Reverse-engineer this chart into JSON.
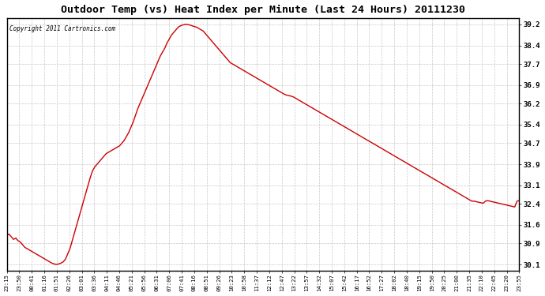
{
  "title": "Outdoor Temp (vs) Heat Index per Minute (Last 24 Hours) 20111230",
  "copyright_text": "Copyright 2011 Cartronics.com",
  "background_color": "#ffffff",
  "plot_bg_color": "#ffffff",
  "line_color": "#cc0000",
  "grid_color": "#bbbbbb",
  "yticks": [
    30.1,
    30.9,
    31.6,
    32.4,
    33.1,
    33.9,
    34.7,
    35.4,
    36.2,
    36.9,
    37.7,
    38.4,
    39.2
  ],
  "ylim": [
    29.85,
    39.45
  ],
  "xtick_labels": [
    "23:15",
    "23:50",
    "00:41",
    "01:16",
    "01:51",
    "02:26",
    "03:01",
    "03:36",
    "04:11",
    "04:46",
    "05:21",
    "05:56",
    "06:31",
    "07:06",
    "07:41",
    "08:16",
    "08:51",
    "09:26",
    "10:23",
    "10:58",
    "11:37",
    "12:12",
    "12:47",
    "13:22",
    "13:57",
    "14:32",
    "15:07",
    "15:42",
    "16:17",
    "16:52",
    "17:27",
    "18:02",
    "18:40",
    "19:15",
    "19:50",
    "20:25",
    "21:00",
    "21:35",
    "22:10",
    "22:45",
    "23:20",
    "23:55"
  ],
  "ydata": [
    31.2,
    31.25,
    31.15,
    31.05,
    31.1,
    31.0,
    30.95,
    30.85,
    30.75,
    30.7,
    30.65,
    30.6,
    30.55,
    30.5,
    30.45,
    30.4,
    30.35,
    30.3,
    30.25,
    30.2,
    30.15,
    30.12,
    30.1,
    30.12,
    30.15,
    30.2,
    30.3,
    30.5,
    30.7,
    31.0,
    31.3,
    31.6,
    31.9,
    32.2,
    32.5,
    32.8,
    33.1,
    33.4,
    33.65,
    33.8,
    33.9,
    34.0,
    34.1,
    34.2,
    34.3,
    34.35,
    34.4,
    34.45,
    34.5,
    34.55,
    34.6,
    34.7,
    34.8,
    34.95,
    35.1,
    35.3,
    35.5,
    35.75,
    36.0,
    36.2,
    36.4,
    36.6,
    36.8,
    37.0,
    37.2,
    37.4,
    37.6,
    37.8,
    38.0,
    38.15,
    38.3,
    38.5,
    38.65,
    38.8,
    38.9,
    39.0,
    39.1,
    39.15,
    39.18,
    39.2,
    39.2,
    39.18,
    39.15,
    39.12,
    39.1,
    39.05,
    39.0,
    38.95,
    38.85,
    38.75,
    38.65,
    38.55,
    38.45,
    38.35,
    38.25,
    38.15,
    38.05,
    37.95,
    37.85,
    37.75,
    37.7,
    37.65,
    37.6,
    37.55,
    37.5,
    37.45,
    37.4,
    37.35,
    37.3,
    37.25,
    37.2,
    37.15,
    37.1,
    37.05,
    37.0,
    36.95,
    36.9,
    36.85,
    36.8,
    36.75,
    36.7,
    36.65,
    36.6,
    36.55,
    36.52,
    36.5,
    36.48,
    36.45,
    36.4,
    36.35,
    36.3,
    36.25,
    36.2,
    36.15,
    36.1,
    36.05,
    36.0,
    35.95,
    35.9,
    35.85,
    35.8,
    35.75,
    35.7,
    35.65,
    35.6,
    35.55,
    35.5,
    35.45,
    35.4,
    35.35,
    35.3,
    35.25,
    35.2,
    35.15,
    35.1,
    35.05,
    35.0,
    34.95,
    34.9,
    34.85,
    34.8,
    34.75,
    34.7,
    34.65,
    34.6,
    34.55,
    34.5,
    34.45,
    34.4,
    34.35,
    34.3,
    34.25,
    34.2,
    34.15,
    34.1,
    34.05,
    34.0,
    33.95,
    33.9,
    33.85,
    33.8,
    33.75,
    33.7,
    33.65,
    33.6,
    33.55,
    33.5,
    33.45,
    33.4,
    33.35,
    33.3,
    33.25,
    33.2,
    33.15,
    33.1,
    33.05,
    33.0,
    32.95,
    32.9,
    32.85,
    32.8,
    32.75,
    32.7,
    32.65,
    32.6,
    32.55,
    32.5,
    32.5,
    32.48,
    32.46,
    32.44,
    32.42,
    32.5,
    32.52,
    32.5,
    32.48,
    32.46,
    32.44,
    32.42,
    32.4,
    32.38,
    32.36,
    32.34,
    32.32,
    32.3,
    32.28,
    32.5,
    32.52
  ]
}
